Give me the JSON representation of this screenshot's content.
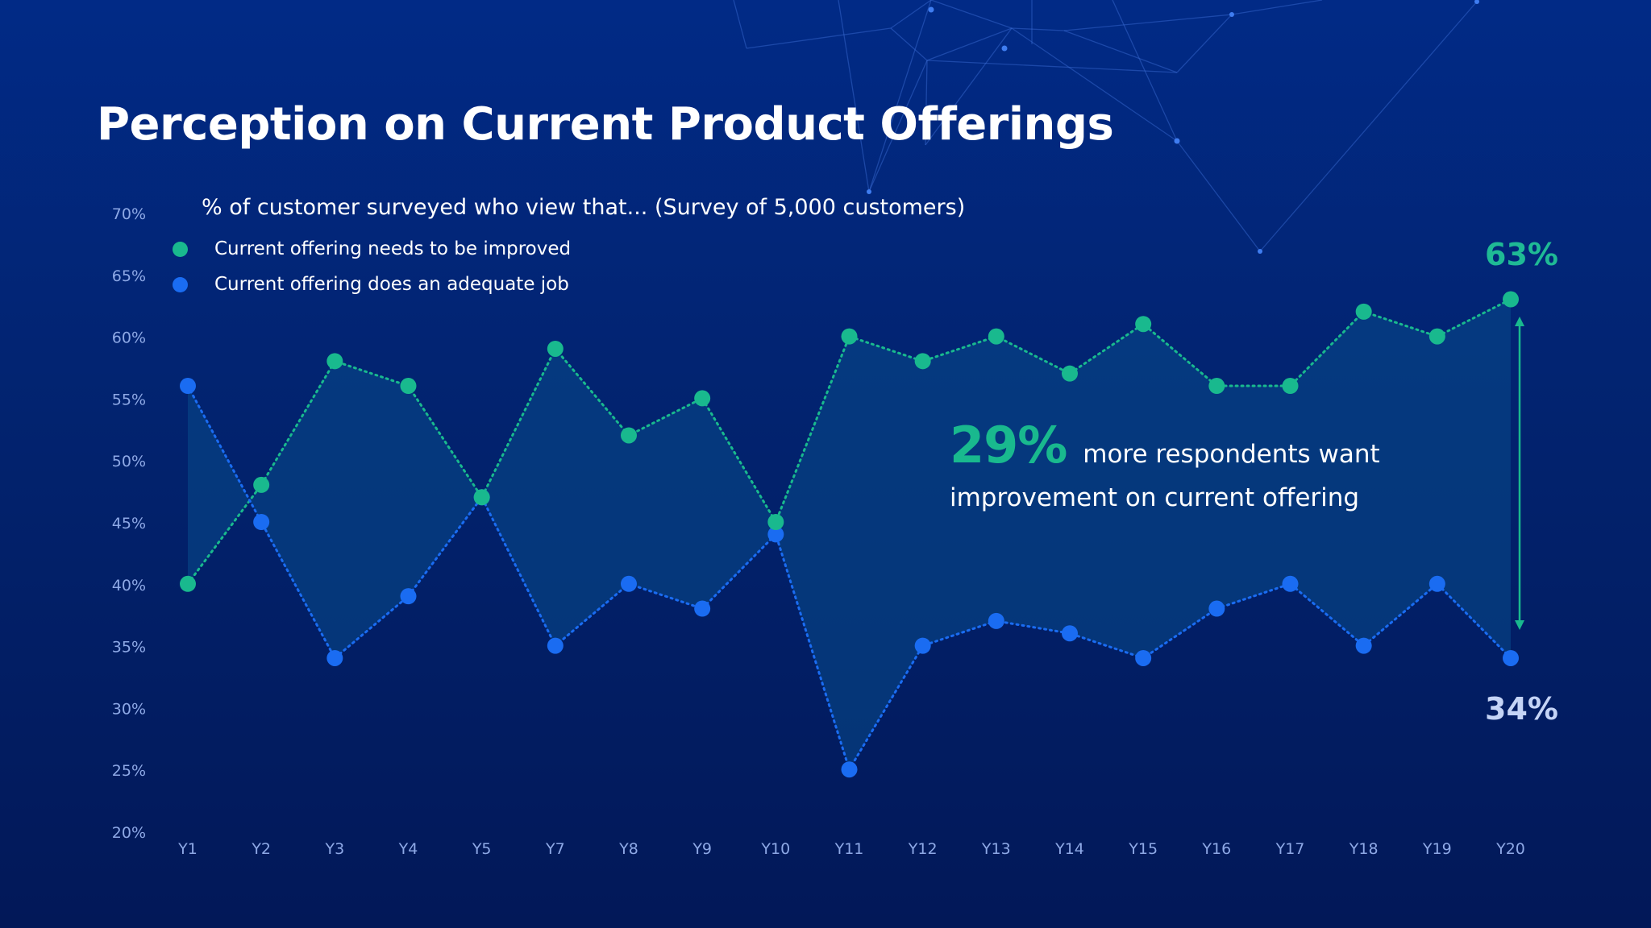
{
  "title": "Perception on Current Product Offerings",
  "colors": {
    "improve": "#19b98e",
    "adequate": "#1a6cf2",
    "axis_text": "#8ea9e6",
    "fill": "#0a4a8a"
  },
  "annotations": {
    "highlight_value": "29%",
    "highlight_text_line1": "more respondents want",
    "highlight_text_line2": "improvement on current offering",
    "end_high": "63%",
    "end_low": "34%"
  },
  "chart_data": {
    "type": "line",
    "subtitle": "% of customer surveyed who view that... (Survey of 5,000 customers)",
    "categories": [
      "Y1",
      "Y2",
      "Y3",
      "Y4",
      "Y5",
      "Y7",
      "Y8",
      "Y9",
      "Y10",
      "Y11",
      "Y12",
      "Y13",
      "Y14",
      "Y15",
      "Y16",
      "Y17",
      "Y18",
      "Y19",
      "Y20"
    ],
    "series": [
      {
        "name": "Current offering needs to be improved",
        "values": [
          40,
          48,
          58,
          56,
          47,
          59,
          52,
          55,
          45,
          60,
          58,
          60,
          57,
          61,
          56,
          56,
          62,
          60,
          63
        ]
      },
      {
        "name": "Current offering does an adequate job",
        "values": [
          56,
          45,
          34,
          39,
          47,
          35,
          40,
          38,
          44,
          25,
          35,
          37,
          36,
          34,
          38,
          40,
          35,
          40,
          34
        ]
      }
    ],
    "ylim": [
      20,
      70
    ],
    "yticks": [
      "20%",
      "25%",
      "30%",
      "35%",
      "40%",
      "45%",
      "50%",
      "55%",
      "60%",
      "65%",
      "70%"
    ],
    "xlabel": "",
    "ylabel": ""
  }
}
